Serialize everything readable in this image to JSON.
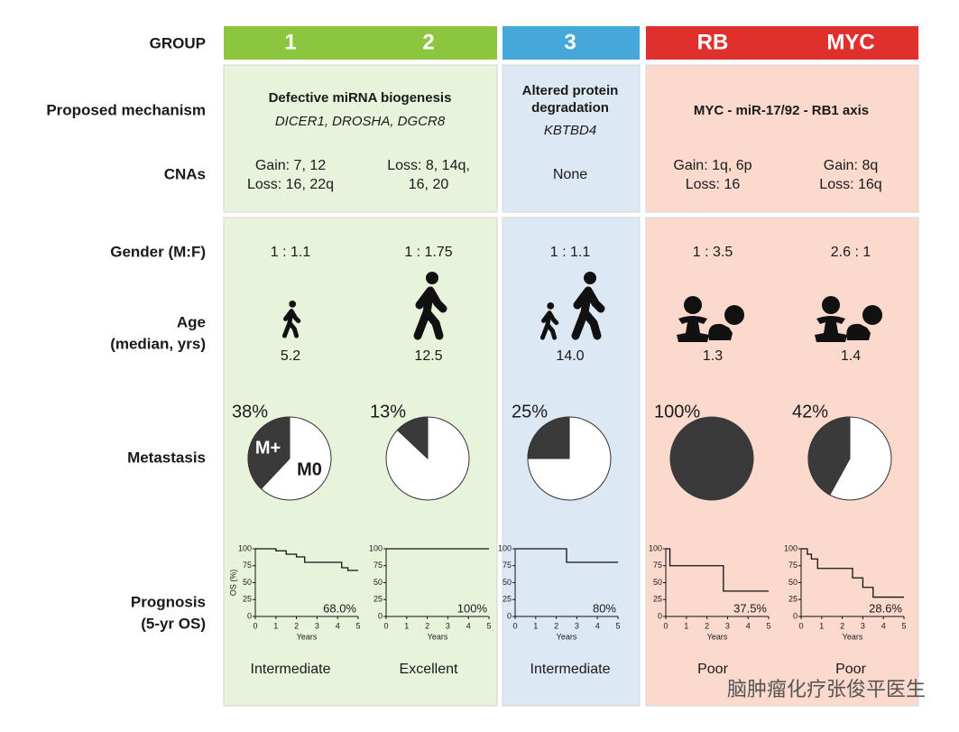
{
  "row_labels": {
    "group": "GROUP",
    "mechanism": "Proposed mechanism",
    "cnas": "CNAs",
    "gender": "Gender (M:F)",
    "age": [
      "Age",
      "(median, yrs)"
    ],
    "metastasis": "Metastasis",
    "prognosis": [
      "Prognosis",
      "(5-yr OS)"
    ]
  },
  "groups": [
    {
      "labels": [
        "1",
        "2"
      ],
      "color": "#8cc63e"
    },
    {
      "labels": [
        "3"
      ],
      "color": "#45a8d9"
    },
    {
      "labels": [
        "RB",
        "MYC"
      ],
      "color": "#e0302d"
    }
  ],
  "mechanisms": [
    {
      "title": [
        "Defective miRNA biogenesis"
      ],
      "genes": "DICER1, DROSHA, DGCR8"
    },
    {
      "title": [
        "Altered protein",
        "degradation"
      ],
      "genes": "KBTBD4"
    },
    {
      "title": [
        "MYC - miR-17/92 - RB1 axis"
      ]
    }
  ],
  "columns": [
    {
      "cnas": [
        "Gain: 7, 12",
        "Loss: 16, 22q"
      ],
      "gender": "1 : 1.1",
      "age": "5.2",
      "metastasis": {
        "type": "pie",
        "values": [
          38
        ],
        "value_labels": [
          "38%"
        ],
        "slice_labels": [
          "M+",
          "M0"
        ],
        "color": "#3a3a3a"
      },
      "survival": {
        "type": "line",
        "x": [
          0,
          1,
          1.5,
          2,
          2.4,
          4.2,
          4.5,
          5
        ],
        "y": [
          100,
          97,
          92,
          88,
          80,
          72,
          68,
          68
        ],
        "xlim": [
          0,
          5
        ],
        "ylim": [
          0,
          100
        ],
        "xticks": [
          0,
          1,
          2,
          3,
          4,
          5
        ],
        "yticks": [
          0,
          25,
          50,
          75,
          100
        ],
        "xlabel": "Years",
        "ylabel": "OS (%)",
        "values": [
          68
        ],
        "value_labels": [
          "68.0%"
        ]
      },
      "outcome": "Intermediate"
    },
    {
      "cnas": [
        "Loss: 8, 14q,",
        "16, 20"
      ],
      "gender": "1 : 1.75",
      "age": "12.5",
      "metastasis": {
        "type": "pie",
        "values": [
          13
        ],
        "value_labels": [
          "13%"
        ],
        "color": "#3a3a3a"
      },
      "survival": {
        "type": "line",
        "x": [
          0,
          5
        ],
        "y": [
          100,
          100
        ],
        "xlim": [
          0,
          5
        ],
        "ylim": [
          0,
          100
        ],
        "xticks": [
          0,
          1,
          2,
          3,
          4,
          5
        ],
        "yticks": [
          0,
          25,
          50,
          75,
          100
        ],
        "xlabel": "Years",
        "values": [
          100
        ],
        "value_labels": [
          "100%"
        ]
      },
      "outcome": "Excellent"
    },
    {
      "cnas": [
        "None"
      ],
      "gender": "1 : 1.1",
      "age": "14.0",
      "metastasis": {
        "type": "pie",
        "values": [
          25
        ],
        "value_labels": [
          "25%"
        ],
        "color": "#3a3a3a"
      },
      "survival": {
        "type": "line",
        "x": [
          0,
          2.5,
          5
        ],
        "y": [
          100,
          80,
          80
        ],
        "xlim": [
          0,
          5
        ],
        "ylim": [
          0,
          100
        ],
        "xticks": [
          0,
          1,
          2,
          3,
          4,
          5
        ],
        "yticks": [
          0,
          25,
          50,
          75,
          100
        ],
        "xlabel": "Years",
        "values": [
          80
        ],
        "value_labels": [
          "80%"
        ]
      },
      "outcome": "Intermediate"
    },
    {
      "cnas": [
        "Gain: 1q, 6p",
        "Loss: 16"
      ],
      "gender": "1 : 3.5",
      "age": "1.3",
      "metastasis": {
        "type": "pie",
        "values": [
          100
        ],
        "value_labels": [
          "100%"
        ],
        "color": "#3a3a3a"
      },
      "survival": {
        "type": "line",
        "x": [
          0,
          0.2,
          2.8,
          5
        ],
        "y": [
          100,
          75,
          37.5,
          37.5
        ],
        "xlim": [
          0,
          5
        ],
        "ylim": [
          0,
          100
        ],
        "xticks": [
          0,
          1,
          2,
          3,
          4,
          5
        ],
        "yticks": [
          0,
          25,
          50,
          75,
          100
        ],
        "xlabel": "Years",
        "values": [
          37.5
        ],
        "value_labels": [
          "37.5%"
        ]
      },
      "outcome": "Poor"
    },
    {
      "cnas": [
        "Gain: 8q",
        "Loss: 16q"
      ],
      "gender": "2.6 : 1",
      "age": "1.4",
      "metastasis": {
        "type": "pie",
        "values": [
          42
        ],
        "value_labels": [
          "42%"
        ],
        "color": "#3a3a3a"
      },
      "survival": {
        "type": "line",
        "x": [
          0,
          0.3,
          0.5,
          0.8,
          2.5,
          3,
          3.5,
          5
        ],
        "y": [
          100,
          92,
          85,
          71,
          57,
          43,
          28.6,
          28.6
        ],
        "xlim": [
          0,
          5
        ],
        "ylim": [
          0,
          100
        ],
        "xticks": [
          0,
          1,
          2,
          3,
          4,
          5
        ],
        "yticks": [
          0,
          25,
          50,
          75,
          100
        ],
        "xlabel": "Years",
        "values": [
          28.6
        ],
        "value_labels": [
          "28.6%"
        ]
      },
      "outcome": "Poor"
    }
  ],
  "watermark": "脑肿瘤化疗张俊平医生"
}
